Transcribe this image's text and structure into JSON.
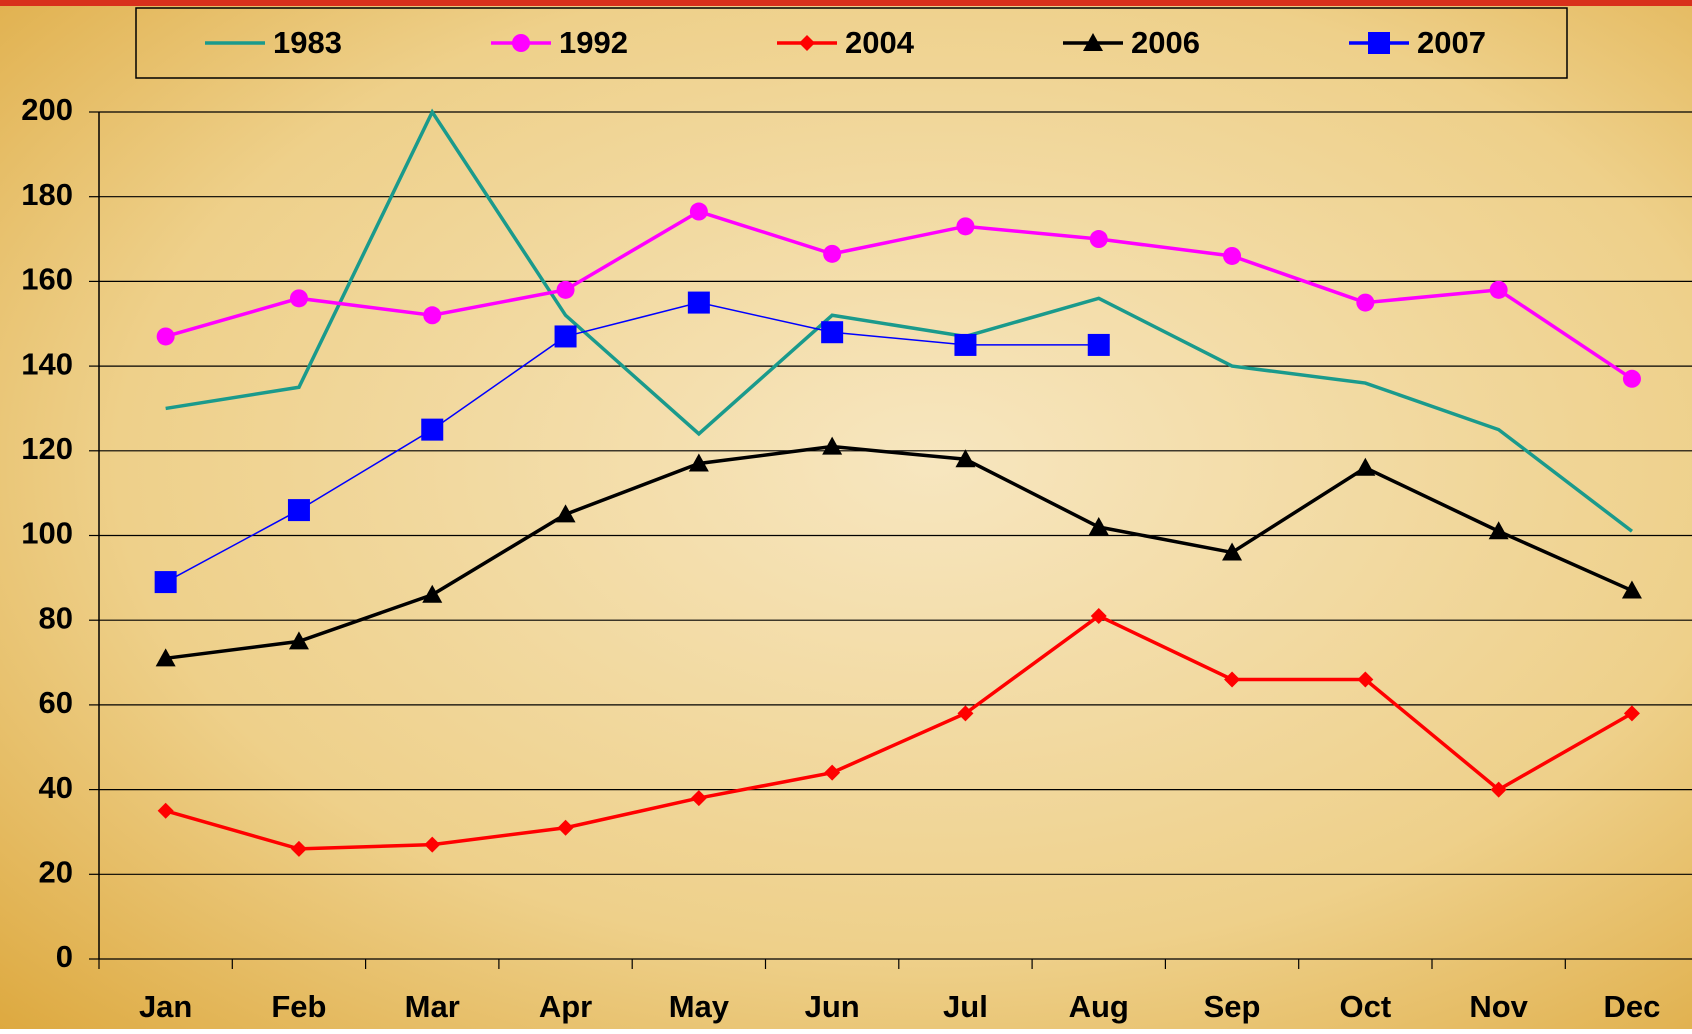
{
  "chart_data": {
    "type": "line",
    "categories": [
      "Jan",
      "Feb",
      "Mar",
      "Apr",
      "May",
      "Jun",
      "Jul",
      "Aug",
      "Sep",
      "Oct",
      "Nov",
      "Dec"
    ],
    "series": [
      {
        "name": "1983",
        "color": "#1a9a8c",
        "marker": "none",
        "values": [
          130,
          135,
          200,
          152,
          124,
          152,
          147,
          156,
          140,
          136,
          125,
          101
        ]
      },
      {
        "name": "1992",
        "color": "#ff00ff",
        "marker": "circle",
        "values": [
          147,
          156,
          152,
          158,
          176.5,
          166.5,
          173,
          170,
          166,
          155,
          158,
          137
        ]
      },
      {
        "name": "2004",
        "color": "#ff0000",
        "marker": "diamond",
        "values": [
          35,
          26,
          27,
          31,
          38,
          44,
          58,
          81,
          66,
          66,
          40,
          58
        ]
      },
      {
        "name": "2006",
        "color": "#000000",
        "marker": "triangle",
        "values": [
          71,
          75,
          86,
          105,
          117,
          121,
          118,
          102,
          96,
          116,
          101,
          87
        ]
      },
      {
        "name": "2007",
        "color": "#0000ff",
        "marker": "square",
        "values": [
          89,
          106,
          125,
          147,
          155,
          148,
          145,
          145,
          null,
          null,
          null,
          null
        ]
      }
    ],
    "ylim": [
      0,
      200
    ],
    "yticks": [
      0,
      20,
      40,
      60,
      80,
      100,
      120,
      140,
      160,
      180,
      200
    ],
    "grid": true,
    "legend": "top"
  }
}
